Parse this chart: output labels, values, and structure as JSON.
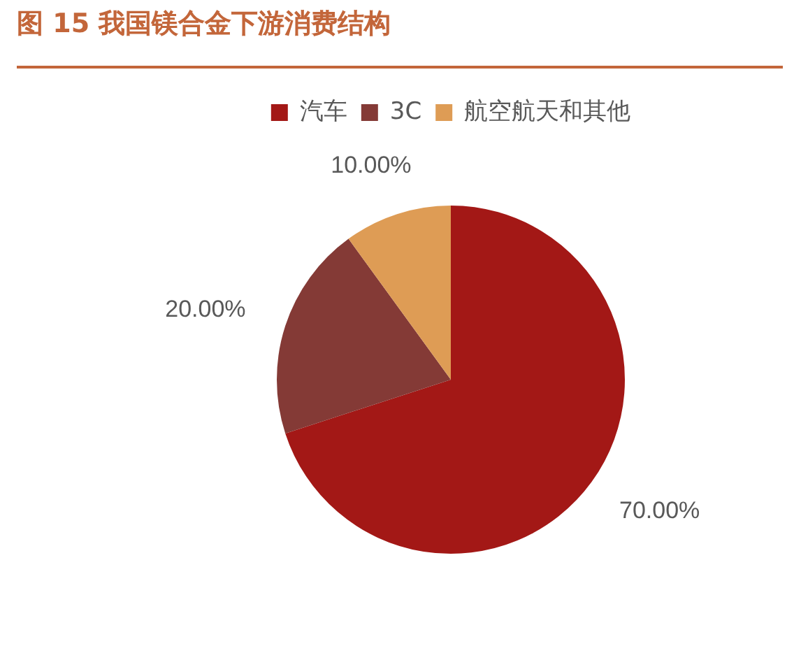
{
  "chart_data": {
    "type": "pie",
    "title": "图 15 我国镁合金下游消费结构",
    "categories": [
      "汽车",
      "3C",
      "航空航天和其他"
    ],
    "values": [
      70,
      20,
      10
    ],
    "colors": [
      "#a31816",
      "#843a36",
      "#de9c55"
    ],
    "value_labels": [
      "70.00%",
      "20.00%",
      "10.00%"
    ],
    "legend": "top"
  }
}
